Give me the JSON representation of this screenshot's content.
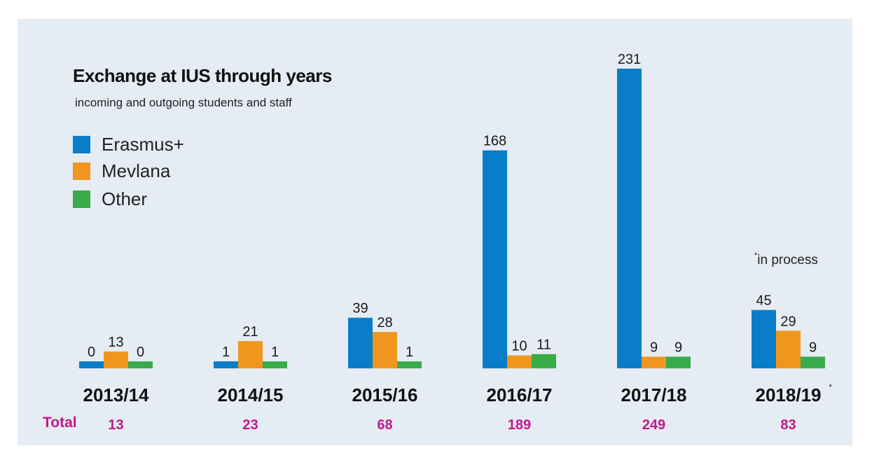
{
  "chart_data": {
    "type": "bar",
    "title": "Exchange at IUS through years",
    "subtitle": "incoming and outgoing students and staff",
    "categories": [
      "2013/14",
      "2014/15",
      "2015/16",
      "2016/17",
      "2017/18",
      "2018/19"
    ],
    "category_suffix": [
      "",
      "",
      "",
      "",
      "",
      "*"
    ],
    "series": [
      {
        "name": "Erasmus+",
        "color": "#0a7dc8",
        "values": [
          0,
          1,
          39,
          168,
          231,
          45
        ]
      },
      {
        "name": "Mevlana",
        "color": "#f0961e",
        "values": [
          13,
          21,
          28,
          10,
          9,
          29
        ]
      },
      {
        "name": "Other",
        "color": "#3aab4a",
        "values": [
          0,
          1,
          1,
          11,
          9,
          9
        ]
      }
    ],
    "totals_label": "Total",
    "totals": [
      13,
      23,
      68,
      189,
      249,
      83
    ],
    "annotation": {
      "marker": "*",
      "text": "in process"
    },
    "legend": "top-left",
    "grid": false,
    "ylim": [
      0,
      231
    ],
    "xlabel": "",
    "ylabel": ""
  }
}
